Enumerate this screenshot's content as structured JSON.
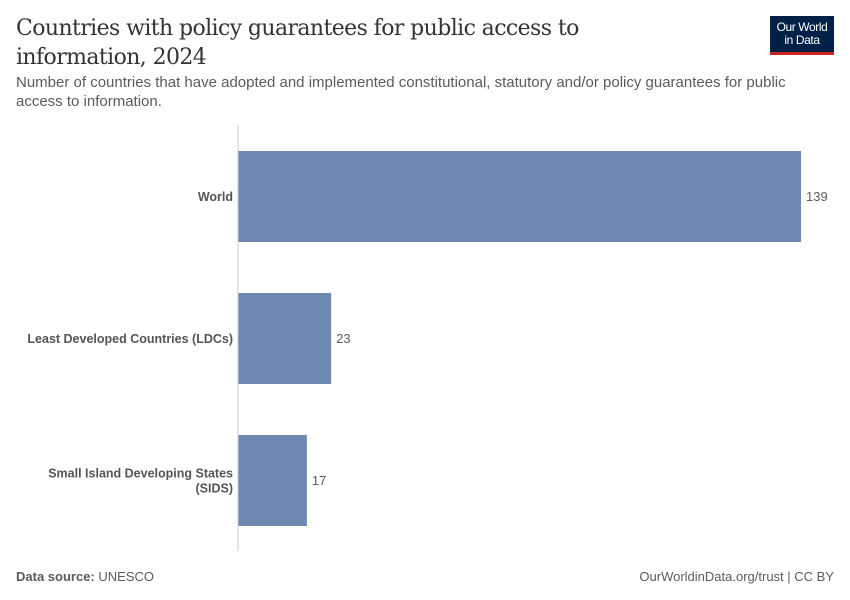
{
  "header": {
    "title": "Countries with policy guarantees for public access to information, 2024",
    "subtitle": "Number of countries that have adopted and implemented constitutional, statutory and/or policy guarantees for public access to information.",
    "logo_line1": "Our World",
    "logo_line2": "in Data"
  },
  "footer": {
    "source_label": "Data source:",
    "source": "UNESCO",
    "license": "OurWorldinData.org/trust | CC BY"
  },
  "chart_data": {
    "type": "bar",
    "orientation": "horizontal",
    "title": "Countries with policy guarantees for public access to information, 2024",
    "categories": [
      [
        "World"
      ],
      [
        "Least Developed Countries (LDCs)"
      ],
      [
        "Small Island Developing States",
        "(SIDS)"
      ]
    ],
    "values": [
      139,
      23,
      17
    ],
    "bar_color": "#6d88b1",
    "grid": false
  }
}
